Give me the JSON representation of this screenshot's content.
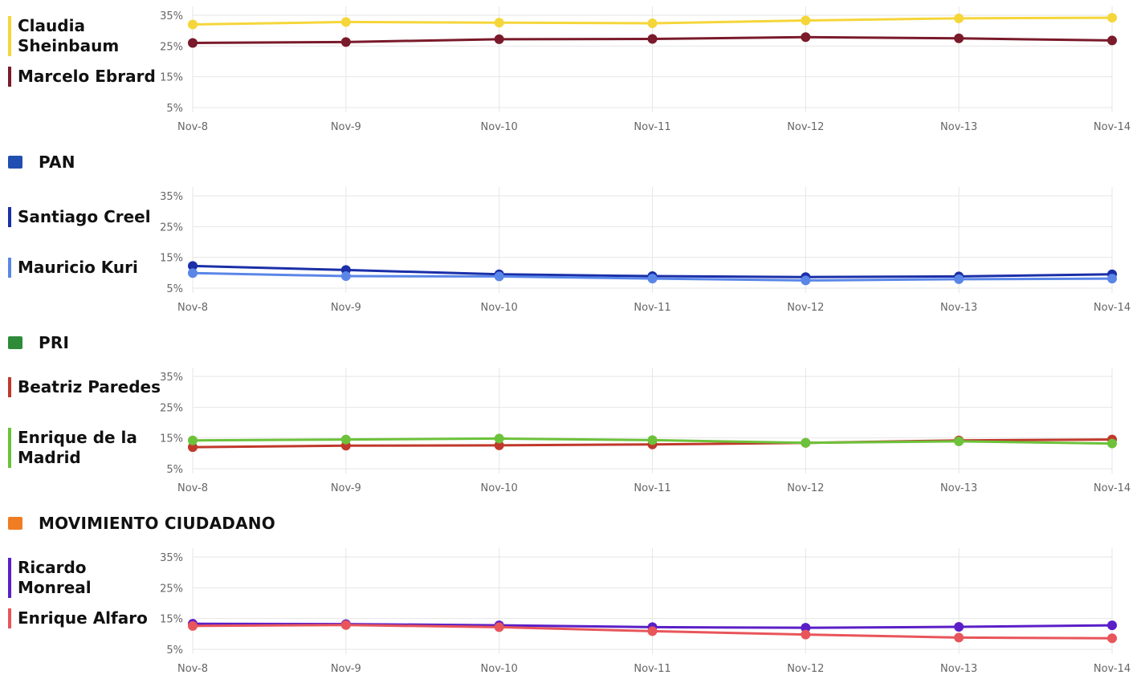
{
  "chart_data": [
    {
      "type": "line",
      "categories": [
        "Nov-8",
        "Nov-9",
        "Nov-10",
        "Nov-11",
        "Nov-12",
        "Nov-13",
        "Nov-14"
      ],
      "ytick_labels": [
        "35%",
        "25%",
        "15%",
        "5%"
      ],
      "yticks": [
        35,
        25,
        15,
        5
      ],
      "ylim": [
        5,
        35
      ],
      "grid": true,
      "series": [
        {
          "name": "Claudia Sheinbaum",
          "color": "#f5d63a",
          "values": [
            32.0,
            32.8,
            32.6,
            32.4,
            33.3,
            34.0,
            34.2
          ]
        },
        {
          "name": "Marcelo Ebrard",
          "color": "#7a1a2a",
          "values": [
            26.0,
            26.3,
            27.2,
            27.3,
            27.9,
            27.5,
            26.8
          ]
        }
      ]
    },
    {
      "type": "line",
      "party": "PAN",
      "icon": "pan-logo-icon",
      "icon_color": "#1f4fb0",
      "categories": [
        "Nov-8",
        "Nov-9",
        "Nov-10",
        "Nov-11",
        "Nov-12",
        "Nov-13",
        "Nov-14"
      ],
      "ytick_labels": [
        "35%",
        "25%",
        "15%",
        "5%"
      ],
      "yticks": [
        35,
        25,
        15,
        5
      ],
      "ylim": [
        5,
        35
      ],
      "grid": true,
      "series": [
        {
          "name": "Santiago Creel",
          "color": "#1a2fa8",
          "values": [
            12.2,
            10.9,
            9.5,
            8.9,
            8.6,
            8.8,
            9.5
          ]
        },
        {
          "name": "Mauricio Kuri",
          "color": "#5a86e8",
          "values": [
            9.9,
            8.9,
            8.8,
            8.1,
            7.5,
            7.9,
            8.1
          ]
        }
      ]
    },
    {
      "type": "line",
      "party": "PRI",
      "icon": "pri-logo-icon",
      "icon_color": "#2e8b3a",
      "categories": [
        "Nov-8",
        "Nov-9",
        "Nov-10",
        "Nov-11",
        "Nov-12",
        "Nov-13",
        "Nov-14"
      ],
      "ytick_labels": [
        "35%",
        "25%",
        "15%",
        "5%"
      ],
      "yticks": [
        35,
        25,
        15,
        5
      ],
      "ylim": [
        5,
        35
      ],
      "grid": true,
      "series": [
        {
          "name": "Beatriz Paredes",
          "color": "#c0392b",
          "values": [
            12.0,
            12.5,
            12.6,
            12.9,
            13.4,
            14.2,
            14.5
          ]
        },
        {
          "name": "Enrique de la Madrid",
          "color": "#6cc23a",
          "values": [
            14.2,
            14.5,
            14.8,
            14.3,
            13.4,
            13.9,
            13.2
          ]
        }
      ]
    },
    {
      "type": "line",
      "party": "MOVIMIENTO CIUDADANO",
      "icon": "mc-logo-icon",
      "icon_color": "#f07c24",
      "categories": [
        "Nov-8",
        "Nov-9",
        "Nov-10",
        "Nov-11",
        "Nov-12",
        "Nov-13",
        "Nov-14"
      ],
      "ytick_labels": [
        "35%",
        "25%",
        "15%",
        "5%"
      ],
      "yticks": [
        35,
        25,
        15,
        5
      ],
      "ylim": [
        5,
        35
      ],
      "grid": true,
      "series": [
        {
          "name": "Ricardo Monreal",
          "color": "#5a1fc7",
          "values": [
            13.3,
            13.2,
            12.8,
            12.2,
            12.0,
            12.3,
            12.8
          ]
        },
        {
          "name": "Enrique Alfaro",
          "color": "#e8555a",
          "values": [
            12.6,
            12.9,
            12.2,
            10.9,
            9.8,
            8.8,
            8.6
          ]
        }
      ]
    }
  ]
}
